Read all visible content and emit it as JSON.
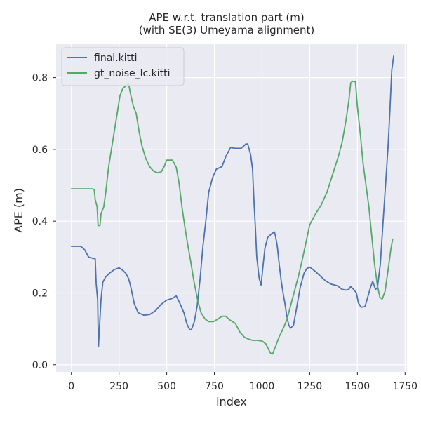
{
  "chart_data": {
    "type": "line",
    "title_lines": [
      "APE w.r.t. translation part (m)",
      "(with SE(3) Umeyama alignment)"
    ],
    "xlabel": "index",
    "ylabel": "APE (m)",
    "xlim": [
      -80,
      1760
    ],
    "ylim": [
      -0.02,
      0.895
    ],
    "xticks": [
      0,
      250,
      500,
      750,
      1000,
      1250,
      1500,
      1750
    ],
    "yticks": [
      0.0,
      0.2,
      0.4,
      0.6,
      0.8
    ],
    "xtick_labels": [
      "0",
      "250",
      "500",
      "750",
      "1000",
      "1250",
      "1500",
      "1750"
    ],
    "ytick_labels": [
      "0.0",
      "0.2",
      "0.4",
      "0.6",
      "0.8"
    ],
    "grid": true,
    "legend_position": "top-left",
    "background": "#eaeaf2",
    "series": [
      {
        "name": "final.kitti",
        "color": "#4c72b0",
        "points": [
          [
            0,
            0.33
          ],
          [
            50,
            0.33
          ],
          [
            70,
            0.32
          ],
          [
            90,
            0.3
          ],
          [
            110,
            0.297
          ],
          [
            125,
            0.295
          ],
          [
            130,
            0.225
          ],
          [
            138,
            0.18
          ],
          [
            142,
            0.05
          ],
          [
            150,
            0.13
          ],
          [
            155,
            0.18
          ],
          [
            165,
            0.23
          ],
          [
            180,
            0.245
          ],
          [
            200,
            0.255
          ],
          [
            225,
            0.265
          ],
          [
            250,
            0.27
          ],
          [
            265,
            0.265
          ],
          [
            285,
            0.255
          ],
          [
            300,
            0.24
          ],
          [
            310,
            0.22
          ],
          [
            330,
            0.17
          ],
          [
            350,
            0.145
          ],
          [
            380,
            0.138
          ],
          [
            410,
            0.14
          ],
          [
            440,
            0.15
          ],
          [
            470,
            0.168
          ],
          [
            500,
            0.18
          ],
          [
            530,
            0.185
          ],
          [
            550,
            0.192
          ],
          [
            570,
            0.17
          ],
          [
            590,
            0.145
          ],
          [
            605,
            0.115
          ],
          [
            620,
            0.098
          ],
          [
            630,
            0.098
          ],
          [
            645,
            0.12
          ],
          [
            660,
            0.165
          ],
          [
            675,
            0.24
          ],
          [
            690,
            0.33
          ],
          [
            705,
            0.4
          ],
          [
            720,
            0.48
          ],
          [
            740,
            0.52
          ],
          [
            760,
            0.545
          ],
          [
            790,
            0.552
          ],
          [
            810,
            0.58
          ],
          [
            835,
            0.605
          ],
          [
            860,
            0.603
          ],
          [
            890,
            0.603
          ],
          [
            915,
            0.615
          ],
          [
            925,
            0.615
          ],
          [
            940,
            0.585
          ],
          [
            950,
            0.545
          ],
          [
            958,
            0.45
          ],
          [
            965,
            0.38
          ],
          [
            972,
            0.3
          ],
          [
            985,
            0.24
          ],
          [
            995,
            0.222
          ],
          [
            1005,
            0.275
          ],
          [
            1015,
            0.325
          ],
          [
            1030,
            0.355
          ],
          [
            1050,
            0.365
          ],
          [
            1065,
            0.37
          ],
          [
            1070,
            0.36
          ],
          [
            1080,
            0.33
          ],
          [
            1090,
            0.28
          ],
          [
            1100,
            0.235
          ],
          [
            1110,
            0.2
          ],
          [
            1120,
            0.17
          ],
          [
            1130,
            0.135
          ],
          [
            1140,
            0.11
          ],
          [
            1150,
            0.102
          ],
          [
            1165,
            0.11
          ],
          [
            1180,
            0.155
          ],
          [
            1200,
            0.215
          ],
          [
            1220,
            0.255
          ],
          [
            1235,
            0.268
          ],
          [
            1250,
            0.272
          ],
          [
            1275,
            0.262
          ],
          [
            1300,
            0.25
          ],
          [
            1330,
            0.235
          ],
          [
            1360,
            0.225
          ],
          [
            1395,
            0.22
          ],
          [
            1420,
            0.21
          ],
          [
            1440,
            0.208
          ],
          [
            1455,
            0.21
          ],
          [
            1465,
            0.218
          ],
          [
            1480,
            0.21
          ],
          [
            1495,
            0.2
          ],
          [
            1505,
            0.172
          ],
          [
            1520,
            0.16
          ],
          [
            1540,
            0.162
          ],
          [
            1555,
            0.19
          ],
          [
            1570,
            0.218
          ],
          [
            1580,
            0.232
          ],
          [
            1595,
            0.21
          ],
          [
            1605,
            0.215
          ],
          [
            1620,
            0.28
          ],
          [
            1635,
            0.4
          ],
          [
            1650,
            0.52
          ],
          [
            1660,
            0.6
          ],
          [
            1670,
            0.7
          ],
          [
            1680,
            0.82
          ],
          [
            1690,
            0.86
          ]
        ]
      },
      {
        "name": "gt_noise_lc.kitti",
        "color": "#55a868",
        "points": [
          [
            0,
            0.49
          ],
          [
            80,
            0.49
          ],
          [
            110,
            0.49
          ],
          [
            120,
            0.488
          ],
          [
            125,
            0.46
          ],
          [
            135,
            0.44
          ],
          [
            140,
            0.388
          ],
          [
            150,
            0.388
          ],
          [
            155,
            0.42
          ],
          [
            170,
            0.44
          ],
          [
            180,
            0.48
          ],
          [
            195,
            0.55
          ],
          [
            210,
            0.6
          ],
          [
            225,
            0.65
          ],
          [
            240,
            0.7
          ],
          [
            255,
            0.75
          ],
          [
            270,
            0.77
          ],
          [
            285,
            0.777
          ],
          [
            300,
            0.782
          ],
          [
            310,
            0.755
          ],
          [
            325,
            0.72
          ],
          [
            340,
            0.7
          ],
          [
            355,
            0.65
          ],
          [
            370,
            0.61
          ],
          [
            390,
            0.575
          ],
          [
            410,
            0.552
          ],
          [
            430,
            0.54
          ],
          [
            450,
            0.535
          ],
          [
            470,
            0.537
          ],
          [
            485,
            0.55
          ],
          [
            500,
            0.57
          ],
          [
            530,
            0.57
          ],
          [
            550,
            0.55
          ],
          [
            565,
            0.505
          ],
          [
            580,
            0.44
          ],
          [
            595,
            0.385
          ],
          [
            610,
            0.335
          ],
          [
            625,
            0.29
          ],
          [
            640,
            0.24
          ],
          [
            660,
            0.185
          ],
          [
            680,
            0.145
          ],
          [
            700,
            0.128
          ],
          [
            720,
            0.12
          ],
          [
            745,
            0.12
          ],
          [
            770,
            0.128
          ],
          [
            790,
            0.135
          ],
          [
            810,
            0.135
          ],
          [
            830,
            0.125
          ],
          [
            860,
            0.115
          ],
          [
            885,
            0.09
          ],
          [
            905,
            0.078
          ],
          [
            925,
            0.072
          ],
          [
            950,
            0.068
          ],
          [
            975,
            0.068
          ],
          [
            1000,
            0.066
          ],
          [
            1020,
            0.058
          ],
          [
            1035,
            0.042
          ],
          [
            1045,
            0.032
          ],
          [
            1055,
            0.03
          ],
          [
            1070,
            0.05
          ],
          [
            1090,
            0.078
          ],
          [
            1110,
            0.1
          ],
          [
            1130,
            0.125
          ],
          [
            1150,
            0.165
          ],
          [
            1170,
            0.205
          ],
          [
            1190,
            0.245
          ],
          [
            1210,
            0.29
          ],
          [
            1230,
            0.34
          ],
          [
            1250,
            0.39
          ],
          [
            1280,
            0.42
          ],
          [
            1310,
            0.445
          ],
          [
            1340,
            0.48
          ],
          [
            1370,
            0.53
          ],
          [
            1400,
            0.58
          ],
          [
            1420,
            0.62
          ],
          [
            1440,
            0.68
          ],
          [
            1455,
            0.735
          ],
          [
            1465,
            0.785
          ],
          [
            1475,
            0.79
          ],
          [
            1490,
            0.788
          ],
          [
            1500,
            0.72
          ],
          [
            1515,
            0.645
          ],
          [
            1530,
            0.56
          ],
          [
            1545,
            0.5
          ],
          [
            1560,
            0.44
          ],
          [
            1575,
            0.36
          ],
          [
            1590,
            0.28
          ],
          [
            1605,
            0.22
          ],
          [
            1618,
            0.188
          ],
          [
            1630,
            0.183
          ],
          [
            1645,
            0.205
          ],
          [
            1660,
            0.26
          ],
          [
            1675,
            0.32
          ],
          [
            1685,
            0.35
          ]
        ]
      }
    ]
  }
}
